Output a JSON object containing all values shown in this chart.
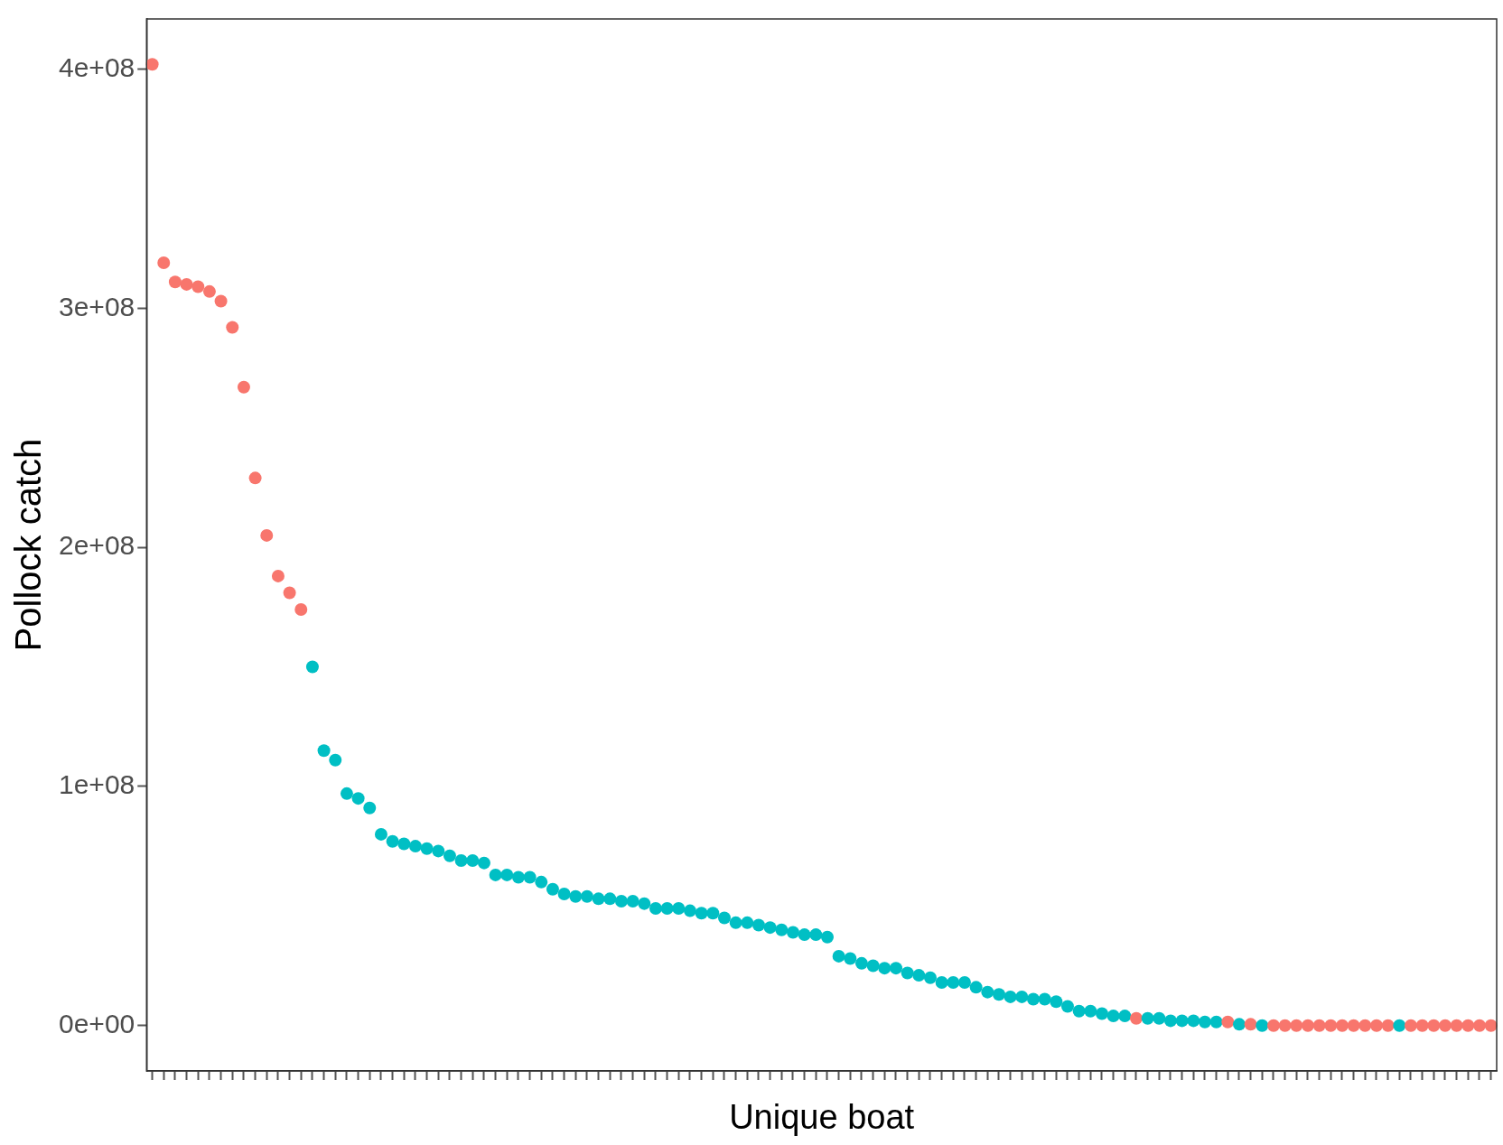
{
  "chart_data": {
    "type": "scatter",
    "xlabel": "Unique boat",
    "ylabel": "Pollock catch",
    "categories": [
      null,
      null,
      null,
      null,
      null,
      null,
      null,
      null,
      null,
      null,
      null,
      null,
      null,
      null,
      null,
      null,
      null,
      null,
      null,
      null,
      null,
      null,
      null,
      null,
      null,
      null,
      null,
      null,
      null,
      null,
      null,
      null,
      null,
      null,
      null,
      null,
      null,
      null,
      null,
      null,
      null,
      null,
      null,
      null,
      null,
      null,
      null,
      null,
      null,
      null,
      null,
      null,
      null,
      null,
      null,
      null,
      null,
      null,
      null,
      null,
      null,
      null,
      null,
      null,
      null,
      null,
      null,
      null,
      null,
      null,
      null,
      null,
      null,
      null,
      null,
      null,
      null,
      null,
      null,
      null,
      null,
      null,
      null,
      null,
      null,
      null,
      null,
      null,
      null,
      null,
      null,
      null,
      null,
      null,
      null,
      null,
      null,
      null,
      null,
      null,
      null,
      null,
      null,
      null,
      null,
      null,
      null,
      null,
      null,
      null,
      null,
      null,
      null,
      null,
      null,
      null,
      null,
      null
    ],
    "values": [
      402000000,
      319000000,
      311000000,
      310000000,
      309000000,
      307000000,
      303000000,
      292000000,
      267000000,
      229000000,
      205000000,
      188000000,
      181000000,
      174000000,
      150000000,
      115000000,
      111000000,
      97000000,
      95000000,
      91000000,
      80000000,
      77000000,
      76000000,
      75000000,
      74000000,
      73000000,
      71000000,
      69000000,
      69000000,
      68000000,
      63000000,
      63000000,
      62000000,
      62000000,
      60000000,
      57000000,
      55000000,
      54000000,
      54000000,
      53000000,
      53000000,
      52000000,
      52000000,
      51000000,
      49000000,
      49000000,
      49000000,
      48000000,
      47000000,
      47000000,
      45000000,
      43000000,
      43000000,
      42000000,
      41000000,
      40000000,
      39000000,
      38000000,
      38000000,
      37000000,
      29000000,
      28000000,
      26000000,
      25000000,
      24000000,
      24000000,
      22000000,
      21000000,
      20000000,
      18000000,
      18000000,
      18000000,
      16000000,
      14000000,
      13000000,
      12000000,
      12000000,
      11000000,
      11000000,
      10000000,
      8000000,
      6000000,
      6000000,
      5000000,
      4000000,
      4000000,
      3000000,
      3000000,
      3000000,
      2000000,
      2000000,
      2000000,
      1500000,
      1500000,
      1500000,
      500000,
      500000,
      0,
      0,
      0,
      0,
      0,
      0,
      0,
      0,
      0,
      0,
      0,
      0,
      0,
      0,
      0,
      0,
      0,
      0,
      0,
      0,
      0
    ],
    "colors": [
      "#f8766d",
      "#f8766d",
      "#f8766d",
      "#f8766d",
      "#f8766d",
      "#f8766d",
      "#f8766d",
      "#f8766d",
      "#f8766d",
      "#f8766d",
      "#f8766d",
      "#f8766d",
      "#f8766d",
      "#f8766d",
      "#00bfc4",
      "#00bfc4",
      "#00bfc4",
      "#00bfc4",
      "#00bfc4",
      "#00bfc4",
      "#00bfc4",
      "#00bfc4",
      "#00bfc4",
      "#00bfc4",
      "#00bfc4",
      "#00bfc4",
      "#00bfc4",
      "#00bfc4",
      "#00bfc4",
      "#00bfc4",
      "#00bfc4",
      "#00bfc4",
      "#00bfc4",
      "#00bfc4",
      "#00bfc4",
      "#00bfc4",
      "#00bfc4",
      "#00bfc4",
      "#00bfc4",
      "#00bfc4",
      "#00bfc4",
      "#00bfc4",
      "#00bfc4",
      "#00bfc4",
      "#00bfc4",
      "#00bfc4",
      "#00bfc4",
      "#00bfc4",
      "#00bfc4",
      "#00bfc4",
      "#00bfc4",
      "#00bfc4",
      "#00bfc4",
      "#00bfc4",
      "#00bfc4",
      "#00bfc4",
      "#00bfc4",
      "#00bfc4",
      "#00bfc4",
      "#00bfc4",
      "#00bfc4",
      "#00bfc4",
      "#00bfc4",
      "#00bfc4",
      "#00bfc4",
      "#00bfc4",
      "#00bfc4",
      "#00bfc4",
      "#00bfc4",
      "#00bfc4",
      "#00bfc4",
      "#00bfc4",
      "#00bfc4",
      "#00bfc4",
      "#00bfc4",
      "#00bfc4",
      "#00bfc4",
      "#00bfc4",
      "#00bfc4",
      "#00bfc4",
      "#00bfc4",
      "#00bfc4",
      "#00bfc4",
      "#00bfc4",
      "#00bfc4",
      "#00bfc4",
      "#f8766d",
      "#00bfc4",
      "#00bfc4",
      "#00bfc4",
      "#00bfc4",
      "#00bfc4",
      "#00bfc4",
      "#00bfc4",
      "#f8766d",
      "#00bfc4",
      "#f8766d",
      "#00bfc4",
      "#f8766d",
      "#f8766d",
      "#f8766d",
      "#f8766d",
      "#f8766d",
      "#f8766d",
      "#f8766d",
      "#f8766d",
      "#f8766d",
      "#f8766d",
      "#f8766d",
      "#00bfc4",
      "#f8766d",
      "#f8766d",
      "#f8766d",
      "#f8766d",
      "#f8766d",
      "#f8766d",
      "#f8766d",
      "#f8766d"
    ],
    "ylim": [
      -19000000,
      421000000
    ],
    "yticks": [
      {
        "value": 0,
        "label": "0e+00"
      },
      {
        "value": 100000000,
        "label": "1e+08"
      },
      {
        "value": 200000000,
        "label": "2e+08"
      },
      {
        "value": 300000000,
        "label": "3e+08"
      },
      {
        "value": 400000000,
        "label": "4e+08"
      }
    ],
    "marker": "circle"
  }
}
